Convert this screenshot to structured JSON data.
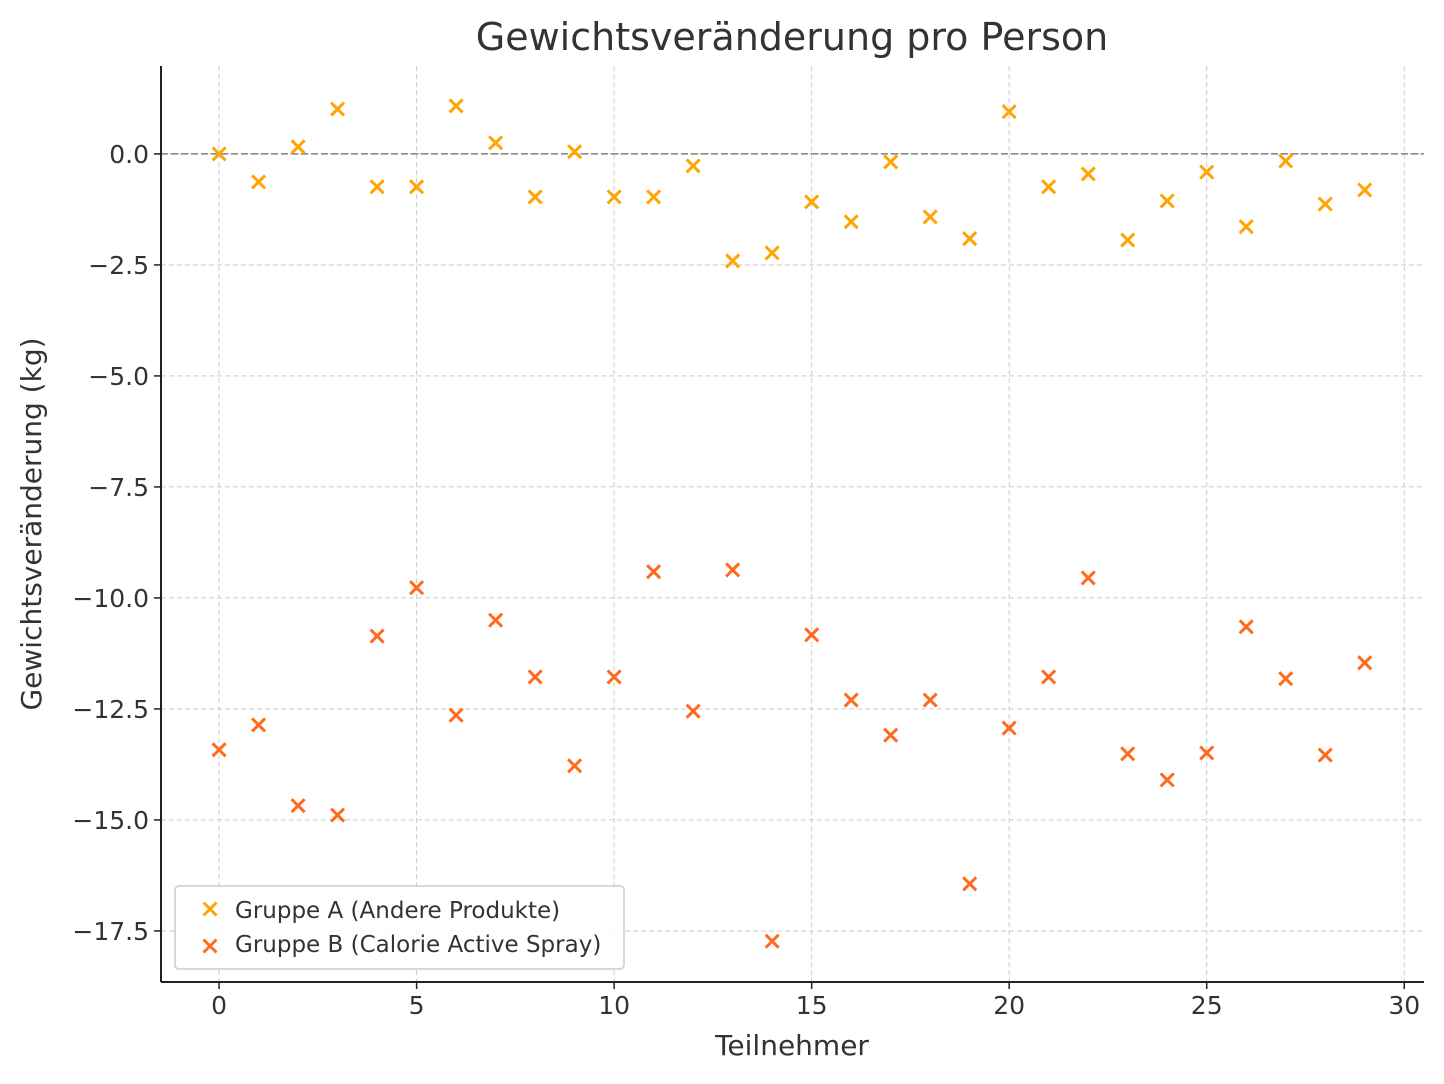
{
  "chart_data": {
    "type": "scatter",
    "title": "Gewichtsveränderung pro Person",
    "xlabel": "Teilnehmer",
    "ylabel": "Gewichtsveränderung (kg)",
    "xlim": [
      -1.47,
      30.5
    ],
    "ylim": [
      -18.65,
      1.98
    ],
    "xticks": [
      0,
      5,
      10,
      15,
      20,
      25,
      30
    ],
    "yticks": [
      0.0,
      -2.5,
      -5.0,
      -7.5,
      -10.0,
      -12.5,
      -15.0,
      -17.5
    ],
    "ytick_labels": [
      "0.0",
      "−2.5",
      "−5.0",
      "−7.5",
      "−10.0",
      "−12.5",
      "−15.0",
      "−17.5"
    ],
    "grid": true,
    "reference_line": {
      "y": 0,
      "style": "dashed",
      "color": "#808080"
    },
    "legend_placement": "lower-left",
    "marker": "x",
    "series": [
      {
        "name": "Gruppe A (Andere Produkte)",
        "color": "#FFA500",
        "x": [
          0,
          1,
          2,
          3,
          4,
          5,
          6,
          7,
          8,
          9,
          10,
          11,
          12,
          13,
          14,
          15,
          16,
          17,
          18,
          19,
          20,
          21,
          22,
          23,
          24,
          25,
          26,
          27,
          28,
          29
        ],
        "y": [
          0.0,
          -0.63,
          0.16,
          1.01,
          -0.74,
          -0.74,
          1.08,
          0.25,
          -0.97,
          0.05,
          -0.97,
          -0.97,
          -0.27,
          -2.41,
          -2.23,
          -1.08,
          -1.53,
          -0.18,
          -1.42,
          -1.91,
          0.95,
          -0.74,
          -0.45,
          -1.94,
          -1.06,
          -0.41,
          -1.64,
          -0.16,
          -1.13,
          -0.81
        ]
      },
      {
        "name": "Gruppe B (Calorie Active Spray)",
        "color": "#FF6A1F",
        "x": [
          0,
          1,
          2,
          3,
          4,
          5,
          6,
          7,
          8,
          9,
          10,
          11,
          12,
          13,
          14,
          15,
          16,
          17,
          18,
          19,
          20,
          21,
          22,
          23,
          24,
          25,
          26,
          27,
          28,
          29
        ],
        "y": [
          -13.42,
          -12.86,
          -14.68,
          -14.89,
          -10.86,
          -9.77,
          -12.64,
          -10.5,
          -11.78,
          -13.78,
          -11.78,
          -9.41,
          -12.55,
          -9.37,
          -17.73,
          -10.83,
          -12.3,
          -13.09,
          -12.3,
          -16.44,
          -12.93,
          -11.78,
          -9.55,
          -13.51,
          -14.1,
          -13.49,
          -10.65,
          -11.82,
          -13.54,
          -11.46
        ]
      }
    ]
  }
}
